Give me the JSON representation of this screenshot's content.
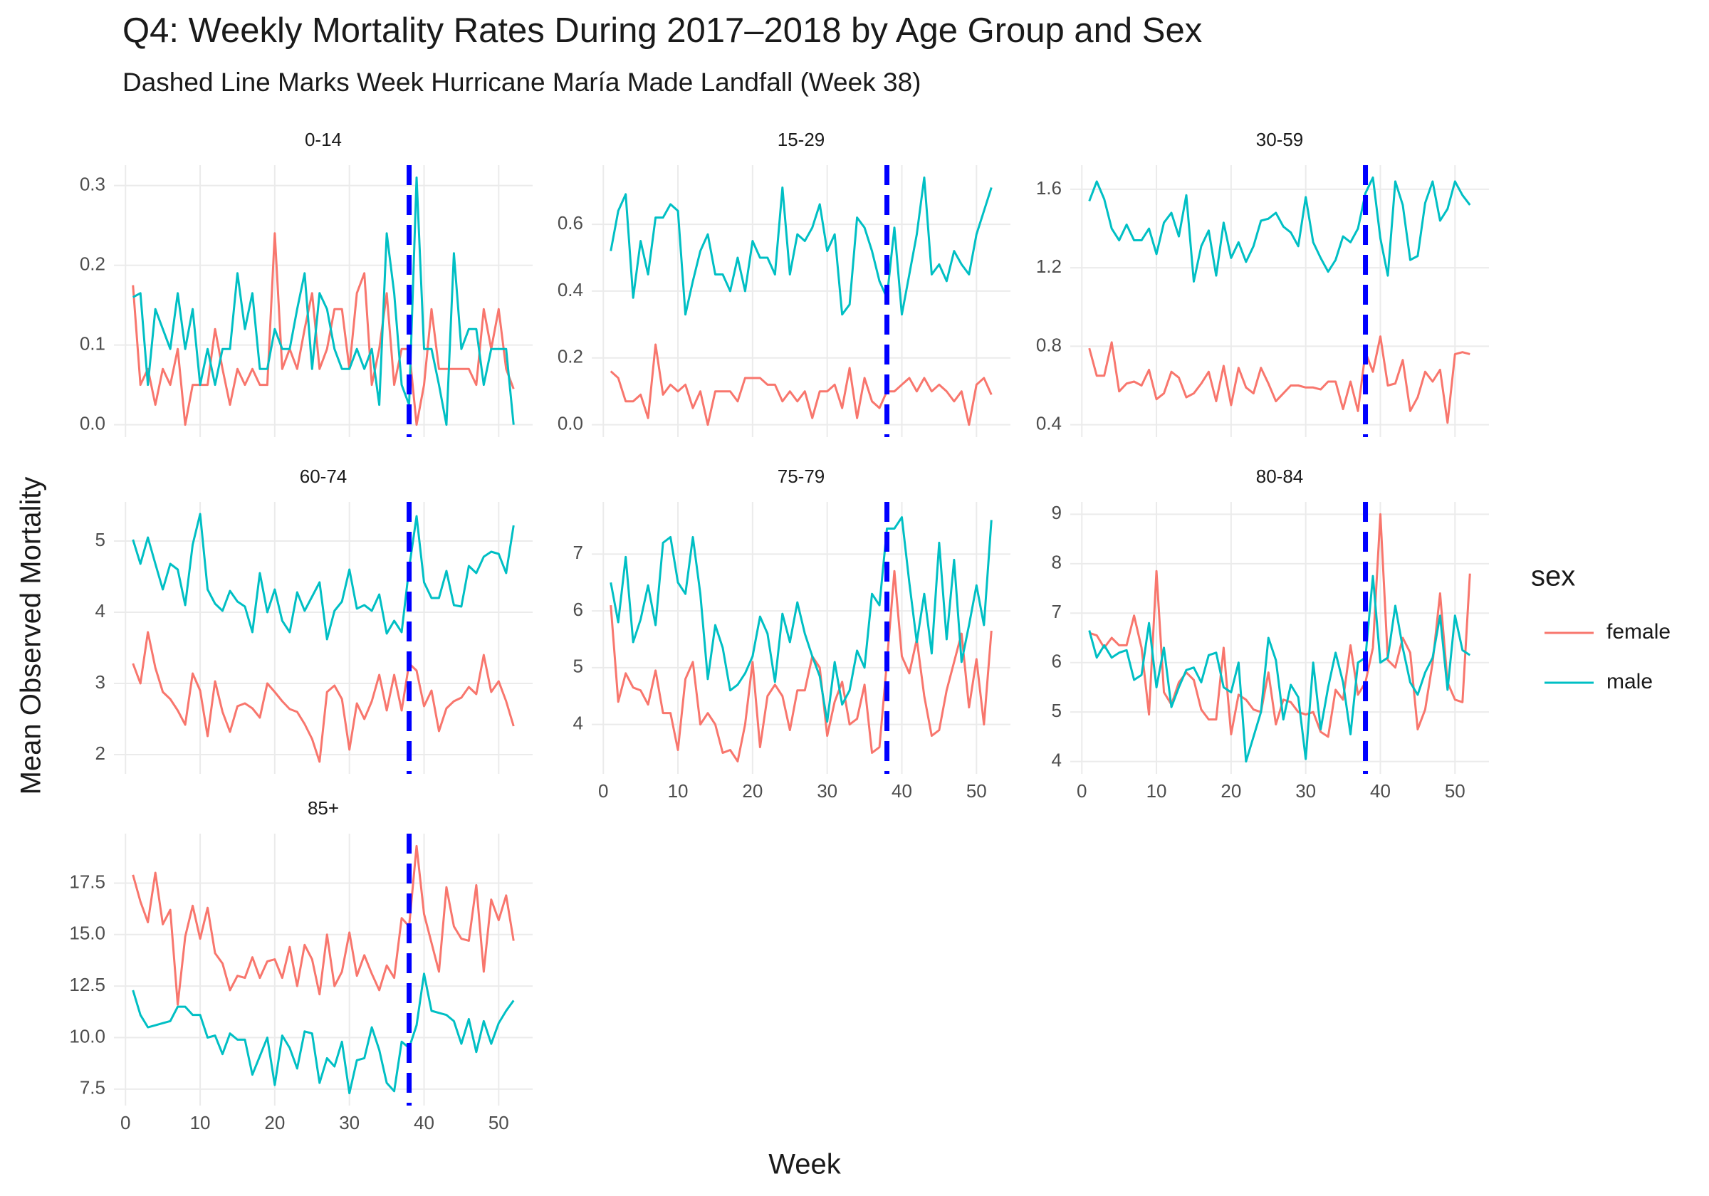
{
  "chart_data": {
    "type": "line",
    "title": "Q4: Weekly Mortality Rates During 2017–2018 by Age Group and Sex",
    "subtitle": "Dashed Line Marks Week Hurricane María Made Landfall (Week 38)",
    "xlabel": "Week",
    "ylabel": "Mean Observed Mortality",
    "legend_title": "sex",
    "legend_position": "right",
    "grid": true,
    "x": [
      1,
      2,
      3,
      4,
      5,
      6,
      7,
      8,
      9,
      10,
      11,
      12,
      13,
      14,
      15,
      16,
      17,
      18,
      19,
      20,
      21,
      22,
      23,
      24,
      25,
      26,
      27,
      28,
      29,
      30,
      31,
      32,
      33,
      34,
      35,
      36,
      37,
      38,
      39,
      40,
      41,
      42,
      43,
      44,
      45,
      46,
      47,
      48,
      49,
      50,
      51,
      52
    ],
    "xlim": [
      -1.55,
      54.55
    ],
    "xticks": [
      0,
      10,
      20,
      30,
      40,
      50
    ],
    "vline": {
      "x": 38,
      "color": "#0000ff",
      "dashed": true
    },
    "facets": [
      {
        "title": "0-14",
        "ylim": [
          -0.0155,
          0.3255
        ],
        "yticks": [
          {
            "value": 0,
            "label": "0.0"
          },
          0.1,
          0.2,
          0.3
        ],
        "series": [
          {
            "name": "female",
            "color": "#F8766D",
            "values": [
              0.175,
              0.05,
              0.07,
              0.025,
              0.07,
              0.05,
              0.095,
              0.0,
              0.05,
              0.05,
              0.05,
              0.12,
              0.07,
              0.025,
              0.07,
              0.05,
              0.07,
              0.05,
              0.05,
              0.24,
              0.07,
              0.095,
              0.07,
              0.12,
              0.165,
              0.07,
              0.095,
              0.145,
              0.145,
              0.07,
              0.165,
              0.19,
              0.05,
              0.095,
              0.165,
              0.05,
              0.095,
              0.095,
              0.0,
              0.05,
              0.145,
              0.07,
              0.07,
              0.07,
              0.07,
              0.07,
              0.05,
              0.145,
              0.095,
              0.145,
              0.07,
              0.045
            ]
          },
          {
            "name": "male",
            "color": "#00BFC4",
            "values": [
              0.16,
              0.165,
              0.05,
              0.145,
              0.12,
              0.095,
              0.165,
              0.095,
              0.145,
              0.05,
              0.095,
              0.05,
              0.095,
              0.095,
              0.19,
              0.12,
              0.165,
              0.07,
              0.07,
              0.12,
              0.095,
              0.095,
              0.145,
              0.19,
              0.07,
              0.165,
              0.145,
              0.095,
              0.07,
              0.07,
              0.095,
              0.07,
              0.095,
              0.025,
              0.24,
              0.165,
              0.05,
              0.025,
              0.31,
              0.095,
              0.095,
              0.05,
              0.0,
              0.215,
              0.095,
              0.12,
              0.12,
              0.05,
              0.095,
              0.095,
              0.095,
              0.0
            ]
          }
        ]
      },
      {
        "title": "15-29",
        "ylim": [
          -0.037,
          0.777
        ],
        "yticks": [
          {
            "value": 0,
            "label": "0.0"
          },
          0.2,
          0.4,
          0.6
        ],
        "series": [
          {
            "name": "female",
            "color": "#F8766D",
            "values": [
              0.16,
              0.14,
              0.07,
              0.07,
              0.09,
              0.02,
              0.24,
              0.09,
              0.12,
              0.1,
              0.12,
              0.05,
              0.1,
              0.0,
              0.1,
              0.1,
              0.1,
              0.07,
              0.14,
              0.14,
              0.14,
              0.12,
              0.12,
              0.07,
              0.1,
              0.07,
              0.1,
              0.02,
              0.1,
              0.1,
              0.12,
              0.05,
              0.17,
              0.02,
              0.14,
              0.07,
              0.05,
              0.1,
              0.1,
              0.12,
              0.14,
              0.1,
              0.14,
              0.1,
              0.12,
              0.1,
              0.07,
              0.1,
              0.0,
              0.12,
              0.14,
              0.09
            ]
          },
          {
            "name": "male",
            "color": "#00BFC4",
            "values": [
              0.52,
              0.64,
              0.69,
              0.38,
              0.55,
              0.45,
              0.62,
              0.62,
              0.66,
              0.64,
              0.33,
              0.43,
              0.52,
              0.57,
              0.45,
              0.45,
              0.4,
              0.5,
              0.4,
              0.55,
              0.5,
              0.5,
              0.45,
              0.71,
              0.45,
              0.57,
              0.55,
              0.59,
              0.66,
              0.52,
              0.57,
              0.33,
              0.36,
              0.62,
              0.59,
              0.52,
              0.43,
              0.38,
              0.59,
              0.33,
              0.45,
              0.57,
              0.74,
              0.45,
              0.48,
              0.43,
              0.52,
              0.48,
              0.45,
              0.57,
              0.64,
              0.71
            ]
          }
        ]
      },
      {
        "title": "30-59",
        "ylim": [
          0.337,
          1.723
        ],
        "yticks": [
          0.4,
          0.8,
          1.2,
          1.6
        ],
        "series": [
          {
            "name": "female",
            "color": "#F8766D",
            "values": [
              0.79,
              0.65,
              0.65,
              0.82,
              0.57,
              0.61,
              0.62,
              0.6,
              0.68,
              0.53,
              0.56,
              0.67,
              0.64,
              0.54,
              0.56,
              0.61,
              0.67,
              0.52,
              0.7,
              0.5,
              0.69,
              0.59,
              0.56,
              0.69,
              0.61,
              0.52,
              0.56,
              0.6,
              0.6,
              0.59,
              0.59,
              0.58,
              0.62,
              0.62,
              0.48,
              0.62,
              0.47,
              0.77,
              0.67,
              0.85,
              0.6,
              0.61,
              0.73,
              0.47,
              0.54,
              0.67,
              0.62,
              0.68,
              0.41,
              0.76,
              0.77,
              0.76
            ]
          },
          {
            "name": "male",
            "color": "#00BFC4",
            "values": [
              1.54,
              1.64,
              1.55,
              1.4,
              1.34,
              1.42,
              1.34,
              1.34,
              1.4,
              1.27,
              1.43,
              1.48,
              1.36,
              1.57,
              1.13,
              1.31,
              1.39,
              1.16,
              1.43,
              1.25,
              1.33,
              1.23,
              1.31,
              1.44,
              1.45,
              1.48,
              1.41,
              1.38,
              1.31,
              1.56,
              1.33,
              1.25,
              1.18,
              1.24,
              1.36,
              1.33,
              1.4,
              1.58,
              1.66,
              1.35,
              1.16,
              1.64,
              1.52,
              1.24,
              1.26,
              1.53,
              1.64,
              1.44,
              1.5,
              1.64,
              1.57,
              1.52
            ]
          }
        ]
      },
      {
        "title": "60-74",
        "ylim": [
          1.73,
          5.55
        ],
        "yticks": [
          2,
          3,
          4,
          5
        ],
        "series": [
          {
            "name": "female",
            "color": "#F8766D",
            "values": [
              3.28,
              3.0,
              3.72,
              3.22,
              2.88,
              2.78,
              2.62,
              2.42,
              3.14,
              2.9,
              2.26,
              3.03,
              2.6,
              2.32,
              2.68,
              2.72,
              2.65,
              2.52,
              3.0,
              2.88,
              2.75,
              2.64,
              2.6,
              2.43,
              2.22,
              1.9,
              2.88,
              2.97,
              2.78,
              2.07,
              2.72,
              2.5,
              2.75,
              3.12,
              2.62,
              3.12,
              2.62,
              3.28,
              3.18,
              2.68,
              2.9,
              2.33,
              2.65,
              2.75,
              2.8,
              2.95,
              2.85,
              3.4,
              2.88,
              3.03,
              2.75,
              2.4
            ]
          },
          {
            "name": "male",
            "color": "#00BFC4",
            "values": [
              5.02,
              4.68,
              5.05,
              4.68,
              4.32,
              4.68,
              4.6,
              4.1,
              4.95,
              5.38,
              4.32,
              4.12,
              4.02,
              4.3,
              4.15,
              4.08,
              3.72,
              4.55,
              4.0,
              4.32,
              3.88,
              3.72,
              4.28,
              4.02,
              4.22,
              4.42,
              3.62,
              4.02,
              4.15,
              4.6,
              4.05,
              4.1,
              4.02,
              4.25,
              3.7,
              3.88,
              3.72,
              4.62,
              5.35,
              4.42,
              4.2,
              4.2,
              4.58,
              4.1,
              4.08,
              4.65,
              4.55,
              4.78,
              4.85,
              4.82,
              4.55,
              5.22
            ]
          }
        ]
      },
      {
        "title": "75-79",
        "ylim": [
          3.13,
          7.92
        ],
        "yticks": [
          4,
          5,
          6,
          7
        ],
        "series": [
          {
            "name": "female",
            "color": "#F8766D",
            "values": [
              6.1,
              4.4,
              4.9,
              4.65,
              4.6,
              4.35,
              4.95,
              4.2,
              4.2,
              3.55,
              4.8,
              5.1,
              4.0,
              4.2,
              4.0,
              3.5,
              3.55,
              3.35,
              4.0,
              5.1,
              3.6,
              4.5,
              4.7,
              4.5,
              3.9,
              4.6,
              4.6,
              5.2,
              5.0,
              3.8,
              4.4,
              4.75,
              4.0,
              4.1,
              4.7,
              3.5,
              3.6,
              5.1,
              6.7,
              5.2,
              4.9,
              5.5,
              4.5,
              3.8,
              3.9,
              4.6,
              5.1,
              5.6,
              4.3,
              5.15,
              4.0,
              5.65
            ]
          },
          {
            "name": "male",
            "color": "#00BFC4",
            "values": [
              6.5,
              5.8,
              6.95,
              5.45,
              5.85,
              6.45,
              5.75,
              7.2,
              7.3,
              6.5,
              6.3,
              7.3,
              6.3,
              4.8,
              5.75,
              5.35,
              4.6,
              4.7,
              4.9,
              5.2,
              5.9,
              5.6,
              4.75,
              5.95,
              5.45,
              6.15,
              5.6,
              5.2,
              4.85,
              4.05,
              5.1,
              4.35,
              4.6,
              5.3,
              5.0,
              6.3,
              6.1,
              7.45,
              7.45,
              7.65,
              6.5,
              5.45,
              6.3,
              5.25,
              7.2,
              5.5,
              6.9,
              5.1,
              5.75,
              6.45,
              5.75,
              7.6
            ]
          }
        ]
      },
      {
        "title": "80-84",
        "ylim": [
          3.75,
          9.25
        ],
        "yticks": [
          4,
          5,
          6,
          7,
          8,
          9
        ],
        "series": [
          {
            "name": "female",
            "color": "#F8766D",
            "values": [
              6.6,
              6.55,
              6.3,
              6.5,
              6.35,
              6.35,
              6.95,
              6.3,
              4.95,
              7.85,
              5.4,
              5.15,
              5.6,
              5.8,
              5.65,
              5.05,
              4.85,
              4.85,
              6.3,
              4.55,
              5.35,
              5.25,
              5.05,
              5.0,
              5.8,
              4.75,
              5.25,
              5.2,
              5.0,
              4.95,
              5.0,
              4.6,
              4.5,
              5.45,
              5.25,
              6.35,
              5.35,
              5.6,
              6.3,
              9.0,
              6.05,
              5.9,
              6.5,
              6.2,
              4.65,
              5.05,
              6.0,
              7.4,
              5.6,
              5.25,
              5.2,
              7.8
            ]
          },
          {
            "name": "male",
            "color": "#00BFC4",
            "values": [
              6.65,
              6.1,
              6.35,
              6.1,
              6.2,
              6.25,
              5.65,
              5.75,
              6.8,
              5.5,
              6.3,
              5.1,
              5.5,
              5.85,
              5.9,
              5.6,
              6.15,
              6.2,
              5.5,
              5.4,
              6.0,
              4.0,
              4.5,
              5.0,
              6.5,
              6.05,
              4.85,
              5.55,
              5.3,
              4.05,
              6.0,
              4.65,
              5.5,
              6.2,
              5.6,
              4.55,
              6.0,
              6.1,
              7.75,
              6.0,
              6.1,
              7.15,
              6.3,
              5.6,
              5.35,
              5.8,
              6.1,
              6.95,
              5.45,
              6.95,
              6.25,
              6.15
            ]
          }
        ]
      },
      {
        "title": "85+",
        "ylim": [
          6.7,
          19.9
        ],
        "yticks": [
          7.5,
          {
            "value": 10,
            "label": "10.0"
          },
          12.5,
          {
            "value": 15,
            "label": "15.0"
          },
          17.5
        ],
        "series": [
          {
            "name": "female",
            "color": "#F8766D",
            "values": [
              17.9,
              16.6,
              15.6,
              18.0,
              15.5,
              16.2,
              11.6,
              14.9,
              16.4,
              14.8,
              16.3,
              14.1,
              13.6,
              12.3,
              13.0,
              12.9,
              13.9,
              12.9,
              13.7,
              13.8,
              12.9,
              14.4,
              12.5,
              14.5,
              13.8,
              12.1,
              15.0,
              12.5,
              13.2,
              15.1,
              13.0,
              14.0,
              13.1,
              12.3,
              13.5,
              12.9,
              15.8,
              15.4,
              19.3,
              16.0,
              14.6,
              13.2,
              17.3,
              15.4,
              14.8,
              14.7,
              17.4,
              13.2,
              16.7,
              15.7,
              16.9,
              14.7
            ]
          },
          {
            "name": "male",
            "color": "#00BFC4",
            "values": [
              12.3,
              11.1,
              10.5,
              10.6,
              10.7,
              10.8,
              11.5,
              11.5,
              11.1,
              11.1,
              10.0,
              10.1,
              9.2,
              10.2,
              9.9,
              9.9,
              8.2,
              9.1,
              10.0,
              7.7,
              10.1,
              9.5,
              8.5,
              10.3,
              10.2,
              7.8,
              9.0,
              8.6,
              9.8,
              7.3,
              8.9,
              9.0,
              10.5,
              9.4,
              7.8,
              7.4,
              9.8,
              9.5,
              10.6,
              13.1,
              11.3,
              11.2,
              11.1,
              10.8,
              9.7,
              10.9,
              9.3,
              10.8,
              9.7,
              10.7,
              11.3,
              11.8
            ]
          }
        ]
      }
    ]
  }
}
